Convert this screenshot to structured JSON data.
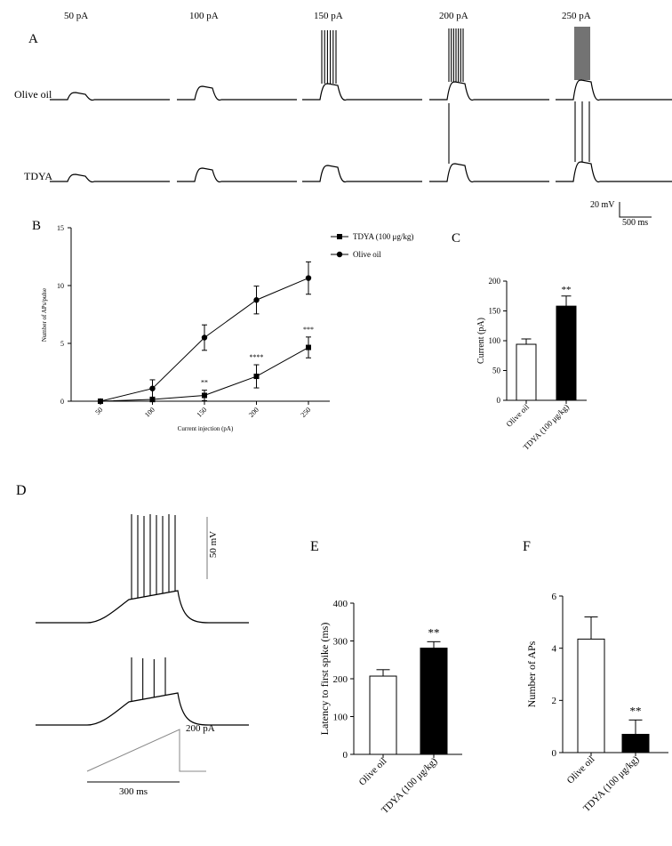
{
  "panels": {
    "A": "A",
    "B": "B",
    "C": "C",
    "D": "D",
    "E": "E",
    "F": "F"
  },
  "panel_a": {
    "currents": [
      "50 pA",
      "100 pA",
      "150 pA",
      "200 pA",
      "250 pA"
    ],
    "rows": [
      "Olive oil",
      "TDYA"
    ],
    "spike_counts": {
      "Olive oil": [
        0,
        0,
        6,
        7,
        9
      ],
      "TDYA": [
        0,
        0,
        0,
        1,
        3
      ]
    },
    "scale_v": "20 mV",
    "scale_t": "500 ms"
  },
  "panel_d": {
    "scale_v": "50 mV",
    "ramp_label": "200 pA",
    "time_label": "300 ms",
    "spike_counts": [
      8,
      4
    ]
  },
  "chart_data": [
    {
      "type": "line",
      "panel": "B",
      "title": "",
      "xlabel": "Current injection (pA)",
      "ylabel": "Number of APs/pulse",
      "categories": [
        "50",
        "100",
        "150",
        "200",
        "250"
      ],
      "ylim": [
        0,
        15
      ],
      "yticks": [
        0,
        5,
        10,
        15
      ],
      "series": [
        {
          "name": "TDYA (100 μg/kg)",
          "marker": "square",
          "values": [
            0,
            0.15,
            0.5,
            2.15,
            4.65
          ],
          "errors": [
            0,
            0.2,
            0.45,
            1.0,
            0.9
          ]
        },
        {
          "name": "Olive oil",
          "marker": "circle",
          "values": [
            0,
            1.1,
            5.5,
            8.75,
            10.65
          ],
          "errors": [
            0,
            0.75,
            1.1,
            1.2,
            1.4
          ]
        }
      ],
      "annotations": [
        {
          "category": "150",
          "text": "**"
        },
        {
          "category": "200",
          "text": "****"
        },
        {
          "category": "250",
          "text": "***"
        }
      ]
    },
    {
      "type": "bar",
      "panel": "C",
      "xlabel": "",
      "ylabel": "Current (pA)",
      "categories": [
        "Olive oil",
        "TDYA (100 μg/kg)"
      ],
      "values": [
        94,
        158
      ],
      "errors": [
        9,
        17
      ],
      "fills": [
        "#ffffff",
        "#000000"
      ],
      "ylim": [
        0,
        200
      ],
      "yticks": [
        0,
        50,
        100,
        150,
        200
      ],
      "annotations": [
        {
          "category": "TDYA (100 μg/kg)",
          "text": "**"
        }
      ]
    },
    {
      "type": "bar",
      "panel": "E",
      "xlabel": "",
      "ylabel": "Latency to first spike (ms)",
      "categories": [
        "Olive oil",
        "TDYA (100 μg/kg)"
      ],
      "values": [
        207,
        281
      ],
      "errors": [
        17,
        17
      ],
      "fills": [
        "#ffffff",
        "#000000"
      ],
      "ylim": [
        0,
        400
      ],
      "yticks": [
        0,
        100,
        200,
        300,
        400
      ],
      "annotations": [
        {
          "category": "TDYA (100 μg/kg)",
          "text": "**"
        }
      ]
    },
    {
      "type": "bar",
      "panel": "F",
      "xlabel": "",
      "ylabel": "Number of APs",
      "categories": [
        "Olive oil",
        "TDYA (100 μg/kg)"
      ],
      "values": [
        4.35,
        0.7
      ],
      "errors": [
        0.85,
        0.55
      ],
      "fills": [
        "#ffffff",
        "#000000"
      ],
      "ylim": [
        0,
        6
      ],
      "yticks": [
        0,
        2,
        4,
        6
      ],
      "annotations": [
        {
          "category": "TDYA (100 μg/kg)",
          "text": "**"
        }
      ]
    }
  ]
}
